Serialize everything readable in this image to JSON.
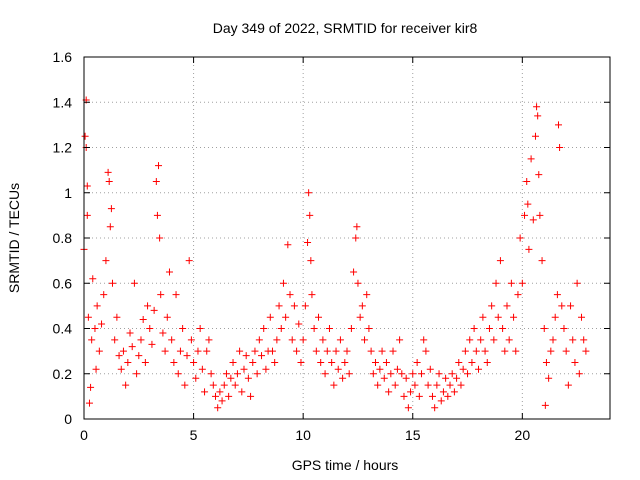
{
  "chart_data": {
    "type": "scatter",
    "title": "Day 349 of 2022, SRMTID for receiver kir8",
    "xlabel": "GPS time / hours",
    "ylabel": "SRMTID / TECUs",
    "xlim": [
      0,
      24
    ],
    "ylim": [
      0,
      1.6
    ],
    "xticks": [
      0,
      5,
      10,
      15,
      20
    ],
    "yticks": [
      0,
      0.2,
      0.4,
      0.6,
      0.8,
      1,
      1.2,
      1.4,
      1.6
    ],
    "xtick_labels": [
      "0",
      "5",
      "10",
      "15",
      "20"
    ],
    "ytick_labels": [
      "0",
      "0.2",
      "0.4",
      "0.6",
      "0.8",
      "1",
      "1.2",
      "1.4",
      "1.6"
    ],
    "grid": true,
    "marker": "+",
    "color": "#ff0000",
    "series": [
      {
        "name": "kir8",
        "points": [
          [
            0.0,
            0.75
          ],
          [
            0.05,
            1.25
          ],
          [
            0.1,
            1.41
          ],
          [
            0.1,
            1.2
          ],
          [
            0.15,
            1.03
          ],
          [
            0.15,
            0.9
          ],
          [
            0.2,
            0.45
          ],
          [
            0.25,
            0.07
          ],
          [
            0.3,
            0.14
          ],
          [
            0.35,
            0.35
          ],
          [
            0.4,
            0.62
          ],
          [
            0.5,
            0.4
          ],
          [
            0.55,
            0.22
          ],
          [
            0.6,
            0.5
          ],
          [
            0.7,
            0.3
          ],
          [
            0.8,
            0.42
          ],
          [
            0.9,
            0.55
          ],
          [
            1.0,
            0.7
          ],
          [
            1.1,
            1.09
          ],
          [
            1.15,
            1.05
          ],
          [
            1.2,
            0.85
          ],
          [
            1.25,
            0.93
          ],
          [
            1.3,
            0.6
          ],
          [
            1.4,
            0.35
          ],
          [
            1.5,
            0.45
          ],
          [
            1.6,
            0.28
          ],
          [
            1.7,
            0.22
          ],
          [
            1.8,
            0.3
          ],
          [
            1.9,
            0.15
          ],
          [
            2.0,
            0.25
          ],
          [
            2.1,
            0.38
          ],
          [
            2.2,
            0.32
          ],
          [
            2.3,
            0.6
          ],
          [
            2.4,
            0.2
          ],
          [
            2.5,
            0.28
          ],
          [
            2.6,
            0.35
          ],
          [
            2.7,
            0.44
          ],
          [
            2.8,
            0.25
          ],
          [
            2.9,
            0.5
          ],
          [
            3.0,
            0.4
          ],
          [
            3.1,
            0.33
          ],
          [
            3.2,
            0.48
          ],
          [
            3.3,
            1.05
          ],
          [
            3.35,
            0.9
          ],
          [
            3.4,
            1.12
          ],
          [
            3.45,
            0.8
          ],
          [
            3.5,
            0.55
          ],
          [
            3.6,
            0.38
          ],
          [
            3.7,
            0.3
          ],
          [
            3.8,
            0.45
          ],
          [
            3.9,
            0.65
          ],
          [
            4.0,
            0.35
          ],
          [
            4.1,
            0.25
          ],
          [
            4.2,
            0.55
          ],
          [
            4.3,
            0.2
          ],
          [
            4.4,
            0.3
          ],
          [
            4.5,
            0.4
          ],
          [
            4.6,
            0.15
          ],
          [
            4.7,
            0.28
          ],
          [
            4.8,
            0.7
          ],
          [
            4.9,
            0.35
          ],
          [
            5.0,
            0.25
          ],
          [
            5.1,
            0.18
          ],
          [
            5.2,
            0.3
          ],
          [
            5.3,
            0.4
          ],
          [
            5.4,
            0.22
          ],
          [
            5.5,
            0.12
          ],
          [
            5.6,
            0.3
          ],
          [
            5.7,
            0.35
          ],
          [
            5.8,
            0.2
          ],
          [
            5.9,
            0.15
          ],
          [
            6.0,
            0.1
          ],
          [
            6.1,
            0.05
          ],
          [
            6.2,
            0.12
          ],
          [
            6.3,
            0.08
          ],
          [
            6.4,
            0.15
          ],
          [
            6.5,
            0.2
          ],
          [
            6.6,
            0.1
          ],
          [
            6.7,
            0.18
          ],
          [
            6.8,
            0.25
          ],
          [
            6.9,
            0.15
          ],
          [
            7.0,
            0.2
          ],
          [
            7.1,
            0.3
          ],
          [
            7.2,
            0.12
          ],
          [
            7.3,
            0.22
          ],
          [
            7.4,
            0.28
          ],
          [
            7.5,
            0.18
          ],
          [
            7.6,
            0.1
          ],
          [
            7.7,
            0.25
          ],
          [
            7.8,
            0.3
          ],
          [
            7.9,
            0.2
          ],
          [
            8.0,
            0.35
          ],
          [
            8.1,
            0.28
          ],
          [
            8.2,
            0.4
          ],
          [
            8.3,
            0.22
          ],
          [
            8.4,
            0.3
          ],
          [
            8.5,
            0.45
          ],
          [
            8.6,
            0.3
          ],
          [
            8.7,
            0.25
          ],
          [
            8.8,
            0.35
          ],
          [
            8.9,
            0.5
          ],
          [
            9.0,
            0.4
          ],
          [
            9.1,
            0.6
          ],
          [
            9.2,
            0.45
          ],
          [
            9.3,
            0.77
          ],
          [
            9.4,
            0.55
          ],
          [
            9.5,
            0.35
          ],
          [
            9.6,
            0.5
          ],
          [
            9.7,
            0.3
          ],
          [
            9.8,
            0.42
          ],
          [
            9.9,
            0.25
          ],
          [
            10.0,
            0.35
          ],
          [
            10.1,
            0.5
          ],
          [
            10.2,
            0.78
          ],
          [
            10.25,
            1.0
          ],
          [
            10.3,
            0.9
          ],
          [
            10.35,
            0.7
          ],
          [
            10.4,
            0.55
          ],
          [
            10.5,
            0.4
          ],
          [
            10.6,
            0.3
          ],
          [
            10.7,
            0.45
          ],
          [
            10.8,
            0.25
          ],
          [
            10.9,
            0.35
          ],
          [
            11.0,
            0.2
          ],
          [
            11.1,
            0.3
          ],
          [
            11.2,
            0.4
          ],
          [
            11.3,
            0.25
          ],
          [
            11.4,
            0.15
          ],
          [
            11.5,
            0.3
          ],
          [
            11.6,
            0.22
          ],
          [
            11.7,
            0.35
          ],
          [
            11.8,
            0.18
          ],
          [
            11.9,
            0.25
          ],
          [
            12.0,
            0.3
          ],
          [
            12.1,
            0.2
          ],
          [
            12.2,
            0.4
          ],
          [
            12.3,
            0.65
          ],
          [
            12.4,
            0.8
          ],
          [
            12.45,
            0.85
          ],
          [
            12.5,
            0.6
          ],
          [
            12.6,
            0.45
          ],
          [
            12.7,
            0.5
          ],
          [
            12.8,
            0.35
          ],
          [
            12.9,
            0.55
          ],
          [
            13.0,
            0.4
          ],
          [
            13.1,
            0.3
          ],
          [
            13.2,
            0.2
          ],
          [
            13.3,
            0.25
          ],
          [
            13.4,
            0.15
          ],
          [
            13.5,
            0.22
          ],
          [
            13.6,
            0.3
          ],
          [
            13.7,
            0.18
          ],
          [
            13.8,
            0.25
          ],
          [
            13.9,
            0.12
          ],
          [
            14.0,
            0.2
          ],
          [
            14.1,
            0.3
          ],
          [
            14.2,
            0.15
          ],
          [
            14.3,
            0.22
          ],
          [
            14.4,
            0.35
          ],
          [
            14.5,
            0.2
          ],
          [
            14.6,
            0.1
          ],
          [
            14.7,
            0.18
          ],
          [
            14.8,
            0.05
          ],
          [
            14.9,
            0.12
          ],
          [
            15.0,
            0.2
          ],
          [
            15.1,
            0.15
          ],
          [
            15.2,
            0.25
          ],
          [
            15.3,
            0.1
          ],
          [
            15.4,
            0.2
          ],
          [
            15.5,
            0.35
          ],
          [
            15.6,
            0.3
          ],
          [
            15.7,
            0.15
          ],
          [
            15.8,
            0.22
          ],
          [
            15.9,
            0.1
          ],
          [
            16.0,
            0.05
          ],
          [
            16.1,
            0.15
          ],
          [
            16.2,
            0.2
          ],
          [
            16.3,
            0.08
          ],
          [
            16.4,
            0.12
          ],
          [
            16.5,
            0.18
          ],
          [
            16.6,
            0.1
          ],
          [
            16.7,
            0.15
          ],
          [
            16.8,
            0.2
          ],
          [
            16.9,
            0.12
          ],
          [
            17.0,
            0.18
          ],
          [
            17.1,
            0.25
          ],
          [
            17.2,
            0.15
          ],
          [
            17.3,
            0.22
          ],
          [
            17.4,
            0.3
          ],
          [
            17.5,
            0.2
          ],
          [
            17.6,
            0.35
          ],
          [
            17.7,
            0.25
          ],
          [
            17.8,
            0.4
          ],
          [
            17.9,
            0.3
          ],
          [
            18.0,
            0.22
          ],
          [
            18.1,
            0.35
          ],
          [
            18.2,
            0.45
          ],
          [
            18.3,
            0.3
          ],
          [
            18.4,
            0.25
          ],
          [
            18.5,
            0.4
          ],
          [
            18.6,
            0.5
          ],
          [
            18.7,
            0.35
          ],
          [
            18.8,
            0.6
          ],
          [
            18.9,
            0.45
          ],
          [
            19.0,
            0.7
          ],
          [
            19.1,
            0.4
          ],
          [
            19.2,
            0.3
          ],
          [
            19.3,
            0.5
          ],
          [
            19.4,
            0.35
          ],
          [
            19.5,
            0.6
          ],
          [
            19.6,
            0.45
          ],
          [
            19.7,
            0.3
          ],
          [
            19.8,
            0.55
          ],
          [
            19.9,
            0.8
          ],
          [
            20.0,
            0.6
          ],
          [
            20.1,
            0.9
          ],
          [
            20.2,
            1.05
          ],
          [
            20.25,
            0.95
          ],
          [
            20.3,
            0.75
          ],
          [
            20.4,
            1.15
          ],
          [
            20.5,
            0.88
          ],
          [
            20.6,
            1.25
          ],
          [
            20.65,
            1.38
          ],
          [
            20.7,
            1.34
          ],
          [
            20.75,
            1.08
          ],
          [
            20.8,
            0.9
          ],
          [
            20.9,
            0.7
          ],
          [
            21.0,
            0.4
          ],
          [
            21.05,
            0.06
          ],
          [
            21.1,
            0.25
          ],
          [
            21.2,
            0.18
          ],
          [
            21.3,
            0.3
          ],
          [
            21.4,
            0.35
          ],
          [
            21.5,
            0.45
          ],
          [
            21.6,
            0.55
          ],
          [
            21.65,
            1.3
          ],
          [
            21.7,
            1.2
          ],
          [
            21.8,
            0.5
          ],
          [
            21.9,
            0.4
          ],
          [
            22.0,
            0.3
          ],
          [
            22.1,
            0.15
          ],
          [
            22.2,
            0.5
          ],
          [
            22.3,
            0.35
          ],
          [
            22.4,
            0.25
          ],
          [
            22.5,
            0.6
          ],
          [
            22.6,
            0.2
          ],
          [
            22.7,
            0.45
          ],
          [
            22.8,
            0.35
          ],
          [
            22.9,
            0.3
          ]
        ]
      }
    ]
  }
}
